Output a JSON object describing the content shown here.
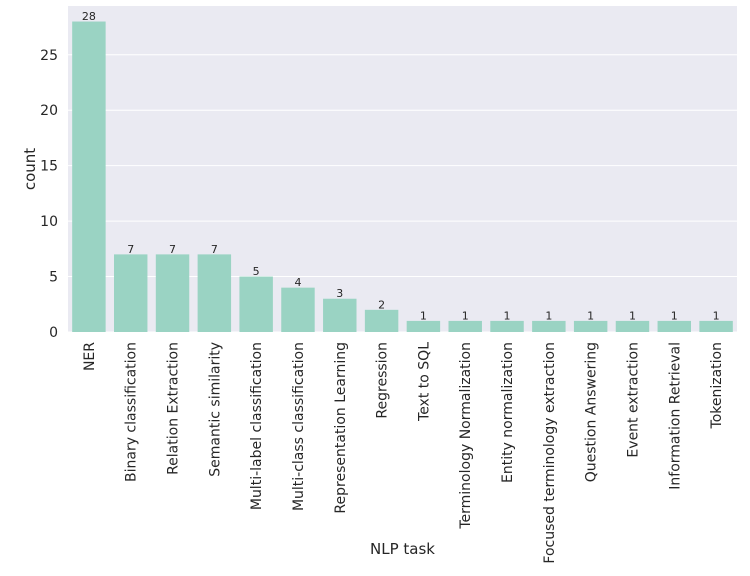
{
  "chart_data": {
    "type": "bar",
    "categories": [
      "NER",
      "Binary classification",
      "Relation Extraction",
      "Semantic similarity",
      "Multi-label classification",
      "Multi-class classification",
      "Representation Learning",
      "Regression",
      "Text to SQL",
      "Terminology Normalization",
      "Entity normalization",
      "Focused terminology extraction",
      "Question Answering",
      "Event extraction",
      "Information Retrieval",
      "Tokenization"
    ],
    "values": [
      28,
      7,
      7,
      7,
      5,
      4,
      3,
      2,
      1,
      1,
      1,
      1,
      1,
      1,
      1,
      1
    ],
    "data_labels": [
      "28",
      "7",
      "7",
      "7",
      "5",
      "4",
      "3",
      "2",
      "1",
      "1",
      "1",
      "1",
      "1",
      "1",
      "1",
      "1"
    ],
    "xlabel": "NLP task",
    "ylabel": "count",
    "ylim": [
      0,
      29.4
    ],
    "yticks": [
      0,
      5,
      10,
      15,
      20,
      25
    ],
    "grid": true,
    "colors": {
      "bar": "#9ad3c3",
      "plot_background": "#eaeaf2",
      "grid": "#ffffff",
      "text": "#262626"
    }
  }
}
